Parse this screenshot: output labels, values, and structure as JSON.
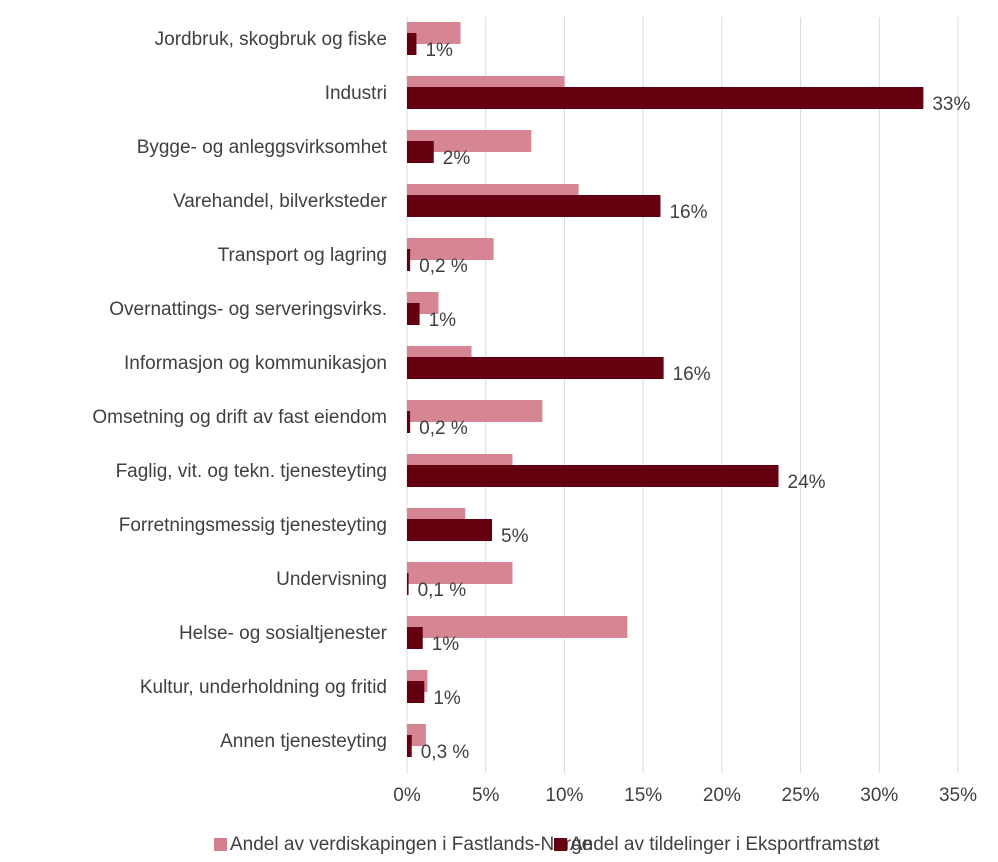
{
  "chart_data": {
    "type": "bar",
    "orientation": "horizontal",
    "categories": [
      "Jordbruk, skogbruk og fiske",
      "Industri",
      "Bygge- og anleggsvirksomhet",
      "Varehandel, bilverksteder",
      "Transport og lagring",
      "Overnattings- og serveringsvirks.",
      "Informasjon og kommunikasjon",
      "Omsetning og drift av fast eiendom",
      "Faglig, vit. og tekn. tjenesteyting",
      "Forretningsmessig tjenesteyting",
      "Undervisning",
      "Helse- og sosialtjenester",
      "Kultur, underholdning og fritid",
      "Annen tjenesteyting"
    ],
    "series": [
      {
        "name": "Andel av verdiskapingen i Fastlands-Norge",
        "color": "#d47f8d",
        "values": [
          3.4,
          10.0,
          7.9,
          10.9,
          5.5,
          2.0,
          4.1,
          8.6,
          6.7,
          3.7,
          6.7,
          14.0,
          1.3,
          1.2
        ]
      },
      {
        "name": "Andel av tildelinger i Eksportframstøt",
        "color": "#650010",
        "values": [
          0.6,
          32.8,
          1.7,
          16.1,
          0.2,
          0.8,
          16.3,
          0.2,
          23.6,
          5.4,
          0.1,
          1.0,
          1.1,
          0.3
        ],
        "value_labels": [
          "1%",
          "33%",
          "2%",
          "16%",
          "0,2 %",
          "1%",
          "16%",
          "0,2 %",
          "24%",
          "5%",
          "0,1 %",
          "1%",
          "1%",
          "0,3 %"
        ]
      }
    ],
    "xlim": [
      0,
      35
    ],
    "xticks": [
      {
        "value": 0,
        "label": "0%"
      },
      {
        "value": 5,
        "label": "5%"
      },
      {
        "value": 10,
        "label": "10%"
      },
      {
        "value": 15,
        "label": "15%"
      },
      {
        "value": 20,
        "label": "20%"
      },
      {
        "value": 25,
        "label": "25%"
      },
      {
        "value": 30,
        "label": "30%"
      },
      {
        "value": 35,
        "label": "35%"
      }
    ],
    "grid": true,
    "legend": "bottom"
  }
}
